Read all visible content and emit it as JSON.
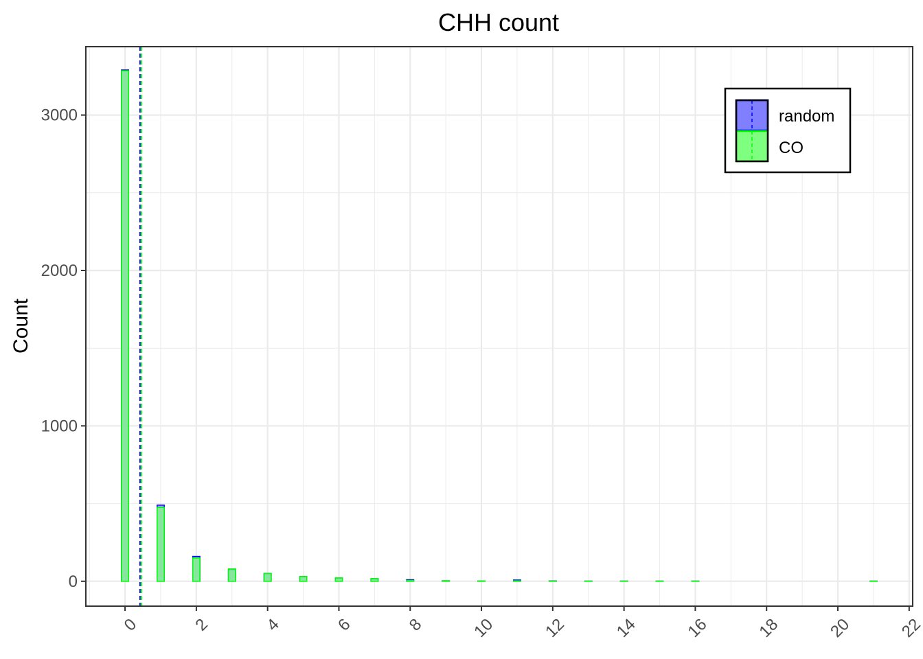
{
  "chart_data": {
    "type": "bar",
    "title": "CHH count",
    "xlabel": "",
    "ylabel": "Count",
    "xlim": [
      -1.1,
      22.1
    ],
    "ylim": [
      -160,
      3440
    ],
    "x_ticks": [
      0,
      2,
      4,
      6,
      8,
      10,
      12,
      14,
      16,
      18,
      20,
      22
    ],
    "x_tick_labels": [
      "0",
      "2",
      "4",
      "6",
      "8",
      "10",
      "12",
      "14",
      "16",
      "18",
      "20",
      "22"
    ],
    "y_ticks": [
      0,
      1000,
      2000,
      3000
    ],
    "y_tick_labels": [
      "0",
      "1000",
      "2000",
      "3000"
    ],
    "grid": true,
    "legend_position": "top-right",
    "x": [
      0,
      1,
      2,
      3,
      4,
      5,
      6,
      7,
      8,
      9,
      10,
      11,
      12,
      13,
      14,
      15,
      16,
      17,
      18,
      19,
      20,
      21
    ],
    "series": [
      {
        "name": "random",
        "color": "#0000ff",
        "fill": "#7f7fff",
        "values": [
          3290,
          490,
          160,
          75,
          50,
          30,
          20,
          15,
          10,
          3,
          2,
          8,
          2,
          1,
          1,
          1,
          1,
          0,
          0,
          0,
          0,
          1
        ],
        "mean": 0.42
      },
      {
        "name": "CO",
        "color": "#00ff00",
        "fill": "#7fff7f",
        "values": [
          3285,
          475,
          150,
          80,
          50,
          30,
          22,
          18,
          5,
          3,
          2,
          3,
          1,
          1,
          1,
          1,
          1,
          0,
          0,
          0,
          0,
          1
        ],
        "mean": 0.46
      }
    ]
  }
}
